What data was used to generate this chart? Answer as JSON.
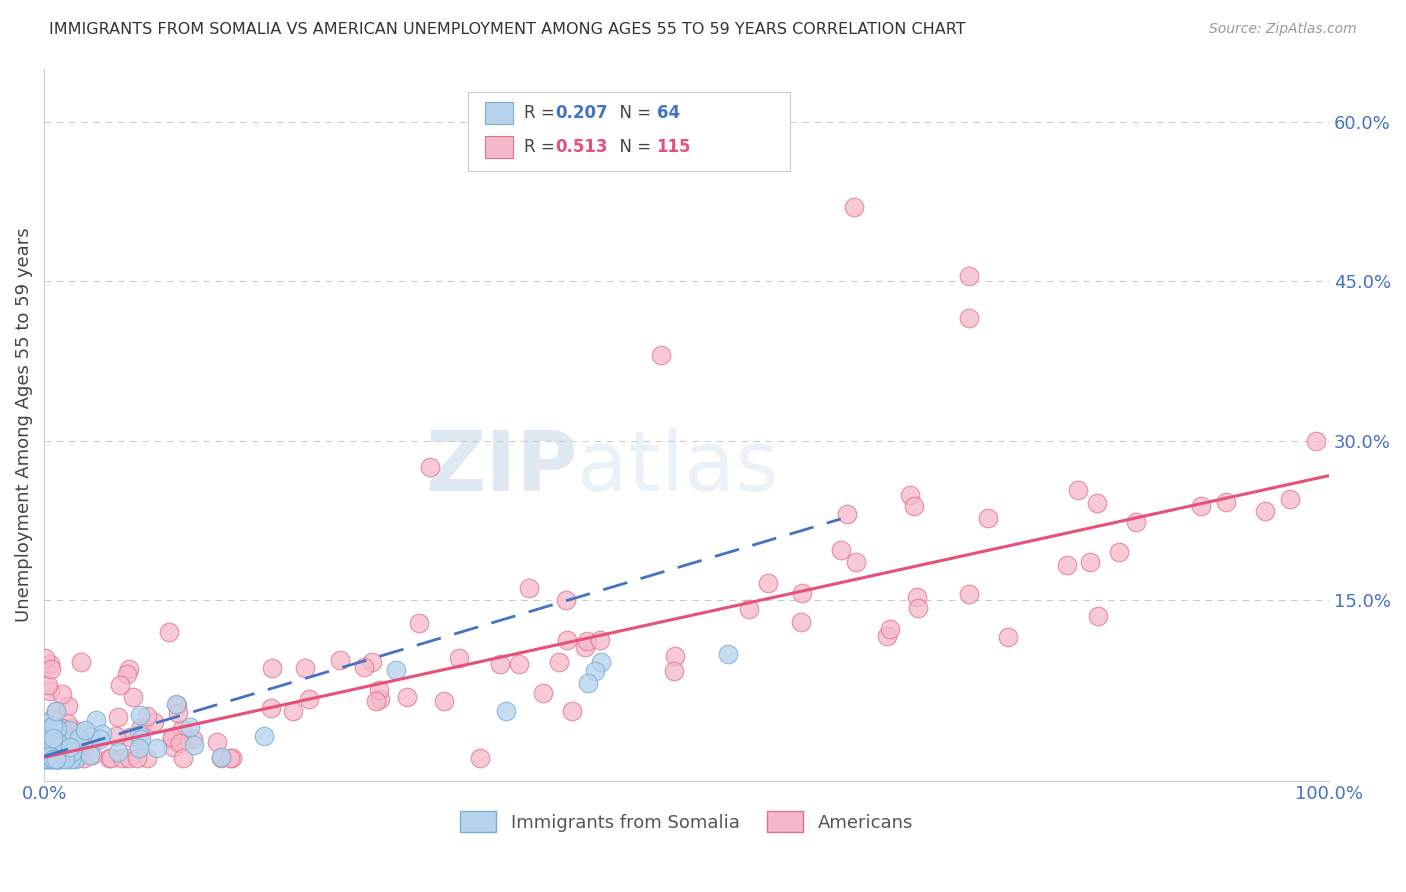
{
  "title": "IMMIGRANTS FROM SOMALIA VS AMERICAN UNEMPLOYMENT AMONG AGES 55 TO 59 YEARS CORRELATION CHART",
  "source": "Source: ZipAtlas.com",
  "ylabel": "Unemployment Among Ages 55 to 59 years",
  "ytick_values": [
    0,
    0.15,
    0.3,
    0.45,
    0.6
  ],
  "ytick_labels": [
    "",
    "15.0%",
    "30.0%",
    "45.0%",
    "60.0%"
  ],
  "xlim": [
    0,
    1.0
  ],
  "ylim": [
    -0.02,
    0.65
  ],
  "R_somalia": 0.207,
  "N_somalia": 64,
  "R_americans": 0.513,
  "N_americans": 115,
  "legend_labels": [
    "Immigrants from Somalia",
    "Americans"
  ],
  "somalia_color": "#b8d4ed",
  "somalia_edge": "#7aadd4",
  "americans_color": "#f5b8c8",
  "americans_edge": "#e07090",
  "somalia_line_color": "#4472c4",
  "americans_line_color": "#e8507a",
  "watermark_zip": "ZIP",
  "watermark_atlas": "atlas",
  "background_color": "#ffffff",
  "tick_color": "#4472c4",
  "grid_color": "#cccccc",
  "title_fontsize": 11.5,
  "source_fontsize": 10,
  "tick_fontsize": 13,
  "ylabel_fontsize": 13
}
